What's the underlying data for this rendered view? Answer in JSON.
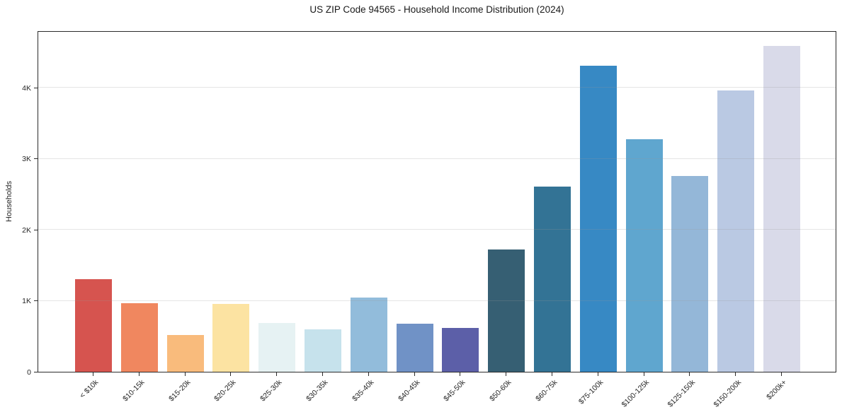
{
  "chart_data": {
    "type": "bar",
    "title": "US ZIP Code 94565 - Household Income Distribution (2024)",
    "xlabel": "",
    "ylabel": "Households",
    "categories": [
      "< $10k",
      "$10-15k",
      "$15-20k",
      "$20-25k",
      "$25-30k",
      "$30-35k",
      "$35-40k",
      "$40-45k",
      "$45-50k",
      "$50-60k",
      "$60-75k",
      "$75-100k",
      "$100-125k",
      "$125-150k",
      "$150-200k",
      "$200k+"
    ],
    "values": [
      1300,
      960,
      520,
      950,
      690,
      600,
      1040,
      680,
      620,
      1720,
      2600,
      4300,
      3270,
      2750,
      3960,
      4580
    ],
    "bar_colors": [
      "#d6544f",
      "#f0875f",
      "#f9bb7c",
      "#fce3a2",
      "#e6f2f3",
      "#c6e2ec",
      "#92bcdb",
      "#7092c6",
      "#5c5fa8",
      "#365f73",
      "#337395",
      "#3789c4",
      "#5fa6cf",
      "#94b7d8",
      "#bac9e3",
      "#d9dae9"
    ],
    "ylim": [
      0,
      4800
    ],
    "yticks": [
      {
        "value": 0,
        "label": "0"
      },
      {
        "value": 1000,
        "label": "1K"
      },
      {
        "value": 2000,
        "label": "2K"
      },
      {
        "value": 3000,
        "label": "3K"
      },
      {
        "value": 4000,
        "label": "4K"
      }
    ],
    "grid": "horizontal, drawn above bars",
    "legend": "none",
    "colors": {
      "background": "#ffffff",
      "axis": "#2b2b2b",
      "grid": "#ebebeb",
      "text": "#262626",
      "title_text": "#1a1a1a"
    }
  }
}
